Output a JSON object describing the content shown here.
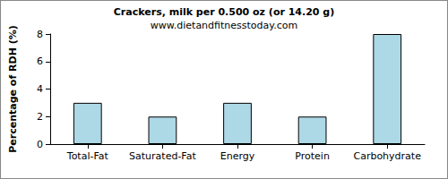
{
  "chart_data": {
    "type": "bar",
    "title": "Crackers, milk per 0.500 oz (or 14.20 g)",
    "subtitle": "www.dietandfitnesstoday.com",
    "y_label": "Percentage of RDH (%)",
    "categories": [
      "Total-Fat",
      "Saturated-Fat",
      "Energy",
      "Protein",
      "Carbohydrate"
    ],
    "values": [
      3,
      2,
      3,
      2,
      8
    ],
    "color": "#add8e6",
    "ylim": [
      0,
      8
    ],
    "yticks": [
      0,
      2,
      4,
      6,
      8
    ],
    "grid": false
  }
}
